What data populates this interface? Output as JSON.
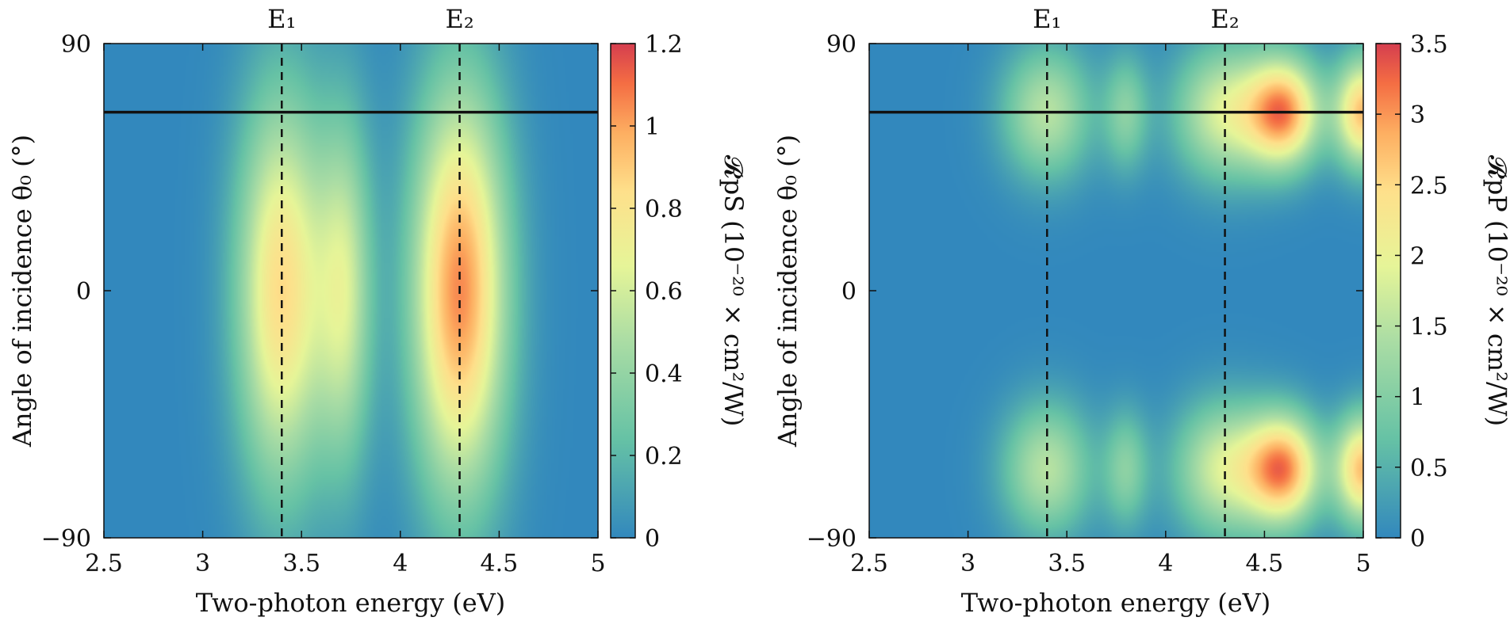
{
  "chart_data": [
    {
      "type": "heatmap",
      "panel": "left",
      "xlabel": "Two-photon energy (eV)",
      "ylabel": "Angle of incidence θ₀ (°)",
      "xlim": [
        2.5,
        5
      ],
      "ylim": [
        -90,
        90
      ],
      "xticks": [
        "2.5",
        "3",
        "3.5",
        "4",
        "4.5",
        "5"
      ],
      "yticks": [
        "−90",
        "0",
        "90"
      ],
      "colorbar": {
        "label": "𝓡pS (10⁻²⁰ × cm²/W)",
        "range": [
          0,
          1.2
        ],
        "ticks": [
          "0",
          "0.2",
          "0.4",
          "0.6",
          "0.8",
          "1",
          "1.2"
        ]
      },
      "markers": [
        {
          "label": "E₁",
          "x": 3.4
        },
        {
          "label": "E₂",
          "x": 4.3
        }
      ],
      "hline": {
        "y": 65
      },
      "peaks": [
        {
          "x": 3.4,
          "y": 0,
          "value": 0.85,
          "sx": 0.16,
          "sy": 50
        },
        {
          "x": 3.72,
          "y": 0,
          "value": 0.55,
          "sx": 0.1,
          "sy": 45
        },
        {
          "x": 4.3,
          "y": 0,
          "value": 1.05,
          "sx": 0.17,
          "sy": 52
        }
      ]
    },
    {
      "type": "heatmap",
      "panel": "right",
      "xlabel": "Two-photon energy (eV)",
      "ylabel": "Angle of incidence θ₀ (°)",
      "xlim": [
        2.5,
        5
      ],
      "ylim": [
        -90,
        90
      ],
      "xticks": [
        "2.5",
        "3",
        "3.5",
        "4",
        "4.5",
        "5"
      ],
      "yticks": [
        "−90",
        "0",
        "90"
      ],
      "colorbar": {
        "label": "𝓡pP (10⁻²⁰ × cm²/W)",
        "range": [
          0,
          3.5
        ],
        "ticks": [
          "0",
          "0.5",
          "1",
          "1.5",
          "2",
          "2.5",
          "3",
          "3.5"
        ]
      },
      "markers": [
        {
          "label": "E₁",
          "x": 3.4
        },
        {
          "label": "E₂",
          "x": 4.3
        }
      ],
      "hline": {
        "y": 65
      },
      "peaks": [
        {
          "x": 3.4,
          "y": 65,
          "value": 1.5,
          "sx": 0.16,
          "sy": 17
        },
        {
          "x": 3.4,
          "y": -65,
          "value": 1.5,
          "sx": 0.16,
          "sy": 17
        },
        {
          "x": 3.8,
          "y": 65,
          "value": 1.0,
          "sx": 0.08,
          "sy": 15
        },
        {
          "x": 3.8,
          "y": -65,
          "value": 1.0,
          "sx": 0.08,
          "sy": 15
        },
        {
          "x": 4.3,
          "y": 65,
          "value": 1.8,
          "sx": 0.18,
          "sy": 17
        },
        {
          "x": 4.3,
          "y": -65,
          "value": 1.8,
          "sx": 0.18,
          "sy": 17
        },
        {
          "x": 4.6,
          "y": 65,
          "value": 2.8,
          "sx": 0.13,
          "sy": 14
        },
        {
          "x": 4.6,
          "y": -65,
          "value": 2.8,
          "sx": 0.13,
          "sy": 14
        },
        {
          "x": 5.0,
          "y": 65,
          "value": 2.7,
          "sx": 0.1,
          "sy": 14
        },
        {
          "x": 5.0,
          "y": -65,
          "value": 2.7,
          "sx": 0.1,
          "sy": 14
        }
      ]
    }
  ]
}
